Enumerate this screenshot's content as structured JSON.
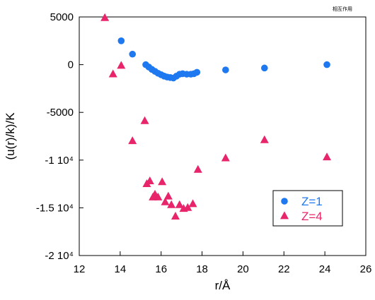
{
  "corner_label": "相互作用",
  "chart_data": {
    "type": "scatter",
    "xlabel": "r/Å",
    "ylabel": "(u(r)/k)/K",
    "xlim": [
      12,
      26
    ],
    "ylim": [
      -20000,
      5000
    ],
    "x_ticks": [
      12,
      14,
      16,
      18,
      20,
      22,
      24,
      26
    ],
    "y_ticks": [
      {
        "value": 5000,
        "label": "5000"
      },
      {
        "value": 0,
        "label": "0"
      },
      {
        "value": -5000,
        "label": "-5000"
      },
      {
        "value": -10000,
        "label": "-1 10⁴"
      },
      {
        "value": -15000,
        "label": "-1.5 10⁴"
      },
      {
        "value": -20000,
        "label": "-2 10⁴"
      }
    ],
    "grid": false,
    "legend_position": "bottom-right",
    "series": [
      {
        "name": "Z=1",
        "marker": "circle",
        "color": "#1e78f0",
        "points": [
          [
            14.05,
            2500
          ],
          [
            14.6,
            1100
          ],
          [
            15.25,
            0
          ],
          [
            15.4,
            -250
          ],
          [
            15.55,
            -500
          ],
          [
            15.7,
            -700
          ],
          [
            15.85,
            -900
          ],
          [
            16.0,
            -1050
          ],
          [
            16.15,
            -1200
          ],
          [
            16.3,
            -1300
          ],
          [
            16.45,
            -1350
          ],
          [
            16.6,
            -1400
          ],
          [
            16.75,
            -1200
          ],
          [
            16.9,
            -1000
          ],
          [
            17.05,
            -950
          ],
          [
            17.25,
            -1000
          ],
          [
            17.45,
            -1000
          ],
          [
            17.6,
            -950
          ],
          [
            17.75,
            -800
          ],
          [
            19.15,
            -550
          ],
          [
            21.05,
            -350
          ],
          [
            24.1,
            0
          ]
        ]
      },
      {
        "name": "Z=4",
        "marker": "triangle",
        "color": "#e8246a",
        "points": [
          [
            13.25,
            4900
          ],
          [
            13.65,
            -1000
          ],
          [
            14.05,
            -100
          ],
          [
            14.6,
            -8000
          ],
          [
            15.2,
            -5900
          ],
          [
            15.3,
            -12500
          ],
          [
            15.45,
            -12200
          ],
          [
            15.6,
            -13900
          ],
          [
            15.7,
            -13600
          ],
          [
            15.85,
            -13900
          ],
          [
            16.05,
            -12300
          ],
          [
            16.2,
            -14400
          ],
          [
            16.35,
            -13800
          ],
          [
            16.5,
            -14700
          ],
          [
            16.7,
            -15900
          ],
          [
            16.9,
            -14700
          ],
          [
            17.1,
            -15100
          ],
          [
            17.3,
            -15000
          ],
          [
            17.55,
            -14600
          ],
          [
            17.8,
            -11000
          ],
          [
            19.15,
            -9800
          ],
          [
            21.05,
            -7900
          ],
          [
            24.1,
            -9700
          ]
        ]
      }
    ]
  }
}
